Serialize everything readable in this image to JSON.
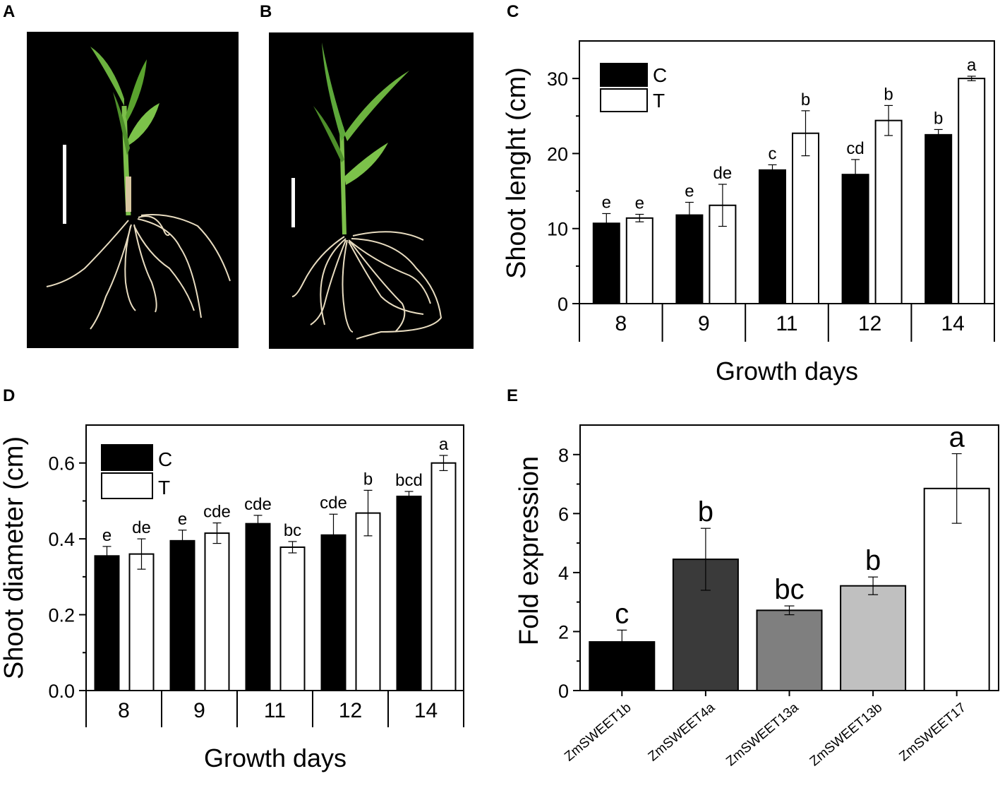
{
  "panels": {
    "A": {
      "label": "A"
    },
    "B": {
      "label": "B"
    },
    "C": {
      "label": "C"
    },
    "D": {
      "label": "D"
    },
    "E": {
      "label": "E"
    }
  },
  "colors": {
    "control": "#000000",
    "treatment": "#ffffff",
    "photo_bg": "#000000",
    "leaf": "#6cb33f",
    "root": "#e8dcc0",
    "scale_bar": "#ffffff"
  },
  "chart_data": [
    {
      "id": "C",
      "type": "bar",
      "xlabel": "Growth days",
      "ylabel": "Shoot lenght (cm)",
      "categories": [
        "8",
        "9",
        "11",
        "12",
        "14"
      ],
      "ylim": [
        0,
        35
      ],
      "yticks": [
        0,
        10,
        20,
        30
      ],
      "legend": {
        "position": "top-left",
        "entries": [
          "C",
          "T"
        ]
      },
      "series": [
        {
          "name": "C",
          "values": [
            10.7,
            11.8,
            17.8,
            17.2,
            22.5
          ],
          "errors": [
            1.3,
            1.7,
            0.7,
            2.0,
            0.7
          ],
          "letters": [
            "e",
            "e",
            "c",
            "cd",
            "b"
          ]
        },
        {
          "name": "T",
          "values": [
            11.4,
            13.1,
            22.7,
            24.4,
            30.0
          ],
          "errors": [
            0.5,
            2.8,
            3.0,
            2.0,
            0.3
          ],
          "letters": [
            "e",
            "de",
            "b",
            "b",
            "a"
          ]
        }
      ]
    },
    {
      "id": "D",
      "type": "bar",
      "xlabel": "Growth days",
      "ylabel": "Shoot diameter (cm)",
      "categories": [
        "8",
        "9",
        "11",
        "12",
        "14"
      ],
      "ylim": [
        0,
        0.7
      ],
      "yticks": [
        "0.0",
        "0.2",
        "0.4",
        "0.6"
      ],
      "legend": {
        "position": "top-left",
        "entries": [
          "C",
          "T"
        ]
      },
      "series": [
        {
          "name": "C",
          "values": [
            0.355,
            0.395,
            0.44,
            0.41,
            0.512
          ],
          "errors": [
            0.025,
            0.028,
            0.022,
            0.055,
            0.013
          ],
          "letters": [
            "e",
            "e",
            "cde",
            "cde",
            "bcd"
          ]
        },
        {
          "name": "T",
          "values": [
            0.36,
            0.415,
            0.378,
            0.468,
            0.6
          ],
          "errors": [
            0.04,
            0.027,
            0.015,
            0.06,
            0.02
          ],
          "letters": [
            "de",
            "cde",
            "bc",
            "b",
            "a"
          ]
        }
      ]
    },
    {
      "id": "E",
      "type": "bar",
      "xlabel": "",
      "ylabel": "Fold expression",
      "categories": [
        "ZmSWEET1b",
        "ZmSWEET4a",
        "ZmSWEET13a",
        "ZmSWEET13b",
        "ZmSWEET17"
      ],
      "ylim": [
        0,
        9
      ],
      "yticks": [
        0,
        2,
        4,
        6,
        8
      ],
      "values": [
        1.65,
        4.45,
        2.72,
        3.55,
        6.85
      ],
      "errors": [
        0.4,
        1.05,
        0.15,
        0.3,
        1.18
      ],
      "letters": [
        "c",
        "b",
        "bc",
        "b",
        "a"
      ],
      "bar_colors": [
        "#000000",
        "#3a3a3a",
        "#7f7f7f",
        "#c0c0c0",
        "#ffffff"
      ]
    }
  ]
}
